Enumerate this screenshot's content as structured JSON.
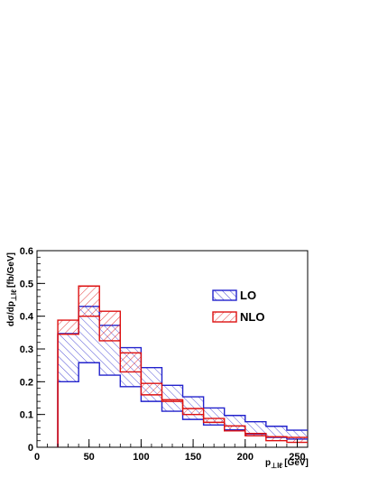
{
  "chart_data": {
    "type": "area",
    "title": "",
    "xlabel": {
      "main": "p",
      "sub": "⊥lℓ",
      "unit": "[GeV]"
    },
    "ylabel": {
      "main": "dσ/dp",
      "sub": "⊥lℓ",
      "unit": "[fb/GeV]"
    },
    "xlim": [
      0,
      260
    ],
    "ylim": [
      0,
      0.6
    ],
    "x_ticks": [
      0,
      50,
      100,
      150,
      200,
      250
    ],
    "y_ticks": [
      0,
      0.1,
      0.2,
      0.3,
      0.4,
      0.5,
      0.6
    ],
    "bin_edges": [
      20,
      40,
      60,
      80,
      100,
      120,
      140,
      160,
      180,
      200,
      220,
      240,
      260
    ],
    "legend_position": "upper-right",
    "series": [
      {
        "name": "LO",
        "color": "#2222cc",
        "lower": [
          0.2,
          0.258,
          0.22,
          0.185,
          0.14,
          0.11,
          0.085,
          0.068,
          0.053,
          0.04,
          0.03,
          0.025
        ],
        "upper": [
          0.347,
          0.43,
          0.372,
          0.304,
          0.243,
          0.189,
          0.154,
          0.12,
          0.097,
          0.078,
          0.064,
          0.052
        ]
      },
      {
        "name": "NLO",
        "color": "#dd1111",
        "lower": [
          0.345,
          0.4,
          0.325,
          0.23,
          0.16,
          0.14,
          0.1,
          0.076,
          0.05,
          0.035,
          0.02,
          0.015
        ],
        "upper": [
          0.388,
          0.492,
          0.415,
          0.288,
          0.195,
          0.145,
          0.118,
          0.088,
          0.065,
          0.042,
          0.032,
          0.03
        ]
      }
    ]
  }
}
